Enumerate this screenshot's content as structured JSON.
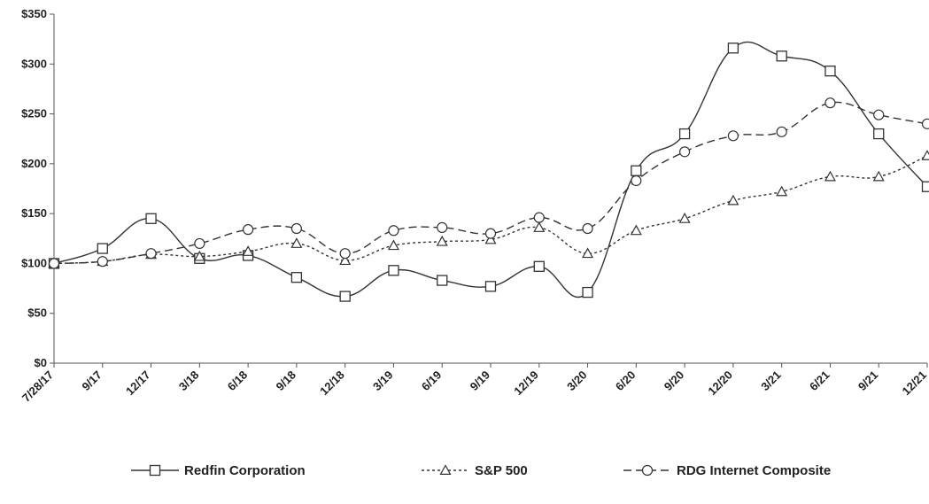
{
  "chart_data": {
    "type": "line",
    "categories": [
      "7/28/17",
      "9/17",
      "12/17",
      "3/18",
      "6/18",
      "9/18",
      "12/18",
      "3/19",
      "6/19",
      "9/19",
      "12/19",
      "3/20",
      "6/20",
      "9/20",
      "12/20",
      "3/21",
      "6/21",
      "9/21",
      "12/21"
    ],
    "yticks": [
      "$0",
      "$50",
      "$100",
      "$150",
      "$200",
      "$250",
      "$300",
      "$350"
    ],
    "ylim": [
      0,
      350
    ],
    "grid": false,
    "legend_position": "bottom",
    "series": [
      {
        "name": "Redfin Corporation",
        "marker": "square",
        "dash": "solid",
        "values": [
          100,
          115,
          145,
          105,
          108,
          86,
          67,
          93,
          83,
          77,
          97,
          71,
          193,
          230,
          316,
          308,
          293,
          230,
          177
        ]
      },
      {
        "name": "S&P 500",
        "marker": "triangle",
        "dash": "dotted",
        "values": [
          100,
          102,
          109,
          107,
          112,
          120,
          103,
          118,
          122,
          124,
          136,
          110,
          133,
          145,
          163,
          172,
          187,
          187,
          208
        ]
      },
      {
        "name": "RDG Internet Composite",
        "marker": "circle",
        "dash": "dashed",
        "values": [
          100,
          102,
          110,
          120,
          134,
          135,
          110,
          133,
          136,
          130,
          146,
          135,
          183,
          212,
          228,
          232,
          261,
          249,
          240
        ]
      }
    ]
  }
}
